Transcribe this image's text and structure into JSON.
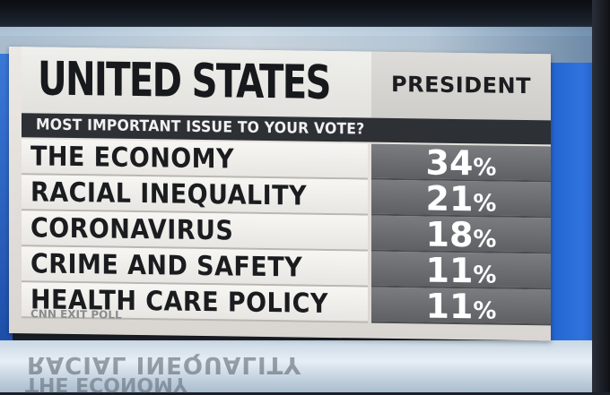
{
  "graphic": {
    "title": "UNITED STATES",
    "column_label": "PRESIDENT",
    "question": "MOST IMPORTANT ISSUE TO YOUR VOTE?",
    "source": "CNN EXIT POLL",
    "rows": [
      {
        "label": "THE ECONOMY",
        "value": "34",
        "unit": "%"
      },
      {
        "label": "RACIAL INEQUALITY",
        "value": "21",
        "unit": "%"
      },
      {
        "label": "CORONAVIRUS",
        "value": "18",
        "unit": "%"
      },
      {
        "label": "CRIME AND SAFETY",
        "value": "11",
        "unit": "%"
      },
      {
        "label": "HEALTH CARE POLICY",
        "value": "11",
        "unit": "%"
      }
    ]
  },
  "background": {
    "reflection_line1": "RACIAL INEQUALITY",
    "reflection_line2": "THE ECONOMY"
  },
  "colors": {
    "header_bar": "#2d3035",
    "value_cell": "#6b6c70",
    "accent_blue": "#2f73e0",
    "accent_red": "#d23a3a"
  }
}
